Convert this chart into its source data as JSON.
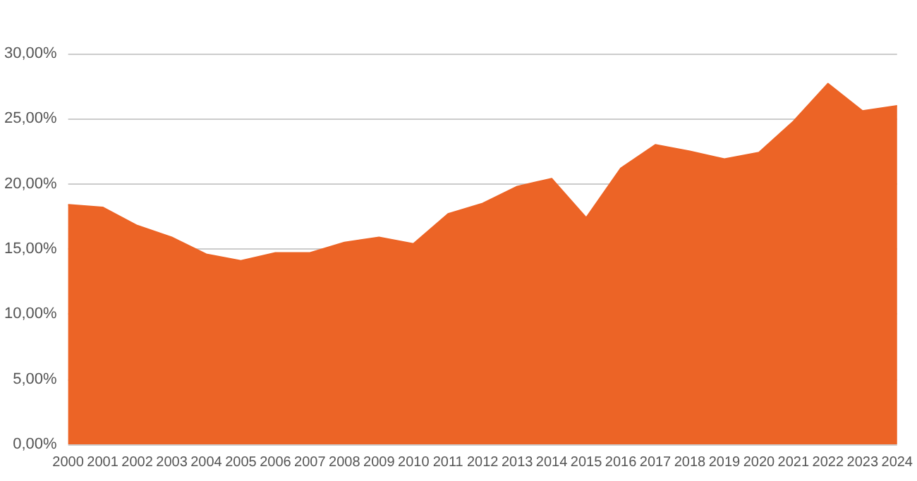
{
  "chart_data": {
    "type": "area",
    "categories": [
      "2000",
      "2001",
      "2002",
      "2003",
      "2004",
      "2005",
      "2006",
      "2007",
      "2008",
      "2009",
      "2010",
      "2011",
      "2012",
      "2013",
      "2014",
      "2015",
      "2016",
      "2017",
      "2018",
      "2019",
      "2020",
      "2021",
      "2022",
      "2023",
      "2024"
    ],
    "series": [
      {
        "color": "#ec6426",
        "values": [
          18.4,
          18.2,
          16.8,
          15.9,
          14.6,
          14.1,
          14.7,
          14.7,
          15.5,
          15.9,
          15.4,
          17.7,
          18.5,
          19.8,
          20.4,
          17.4,
          21.2,
          23.0,
          22.5,
          21.9,
          22.4,
          24.8,
          27.7,
          25.6,
          26.0
        ]
      }
    ],
    "ylim": [
      0,
      30
    ],
    "yticks": [
      {
        "value": 0,
        "label": "0,00%"
      },
      {
        "value": 5,
        "label": "5,00%"
      },
      {
        "value": 10,
        "label": "10,00%"
      },
      {
        "value": 15,
        "label": "15,00%"
      },
      {
        "value": 20,
        "label": "20,00%"
      },
      {
        "value": 25,
        "label": "25,00%"
      },
      {
        "value": 30,
        "label": "30,00%"
      }
    ],
    "grid": "y"
  }
}
